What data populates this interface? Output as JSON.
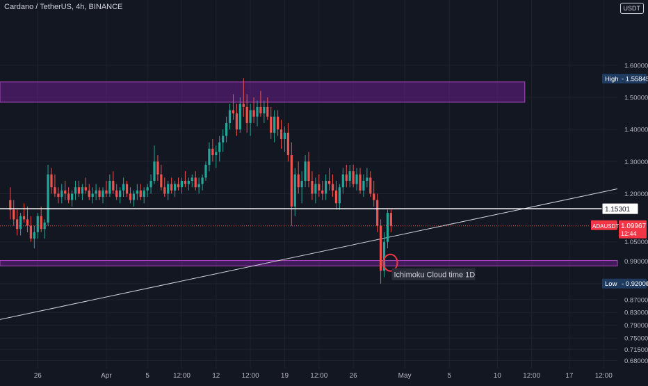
{
  "header": {
    "title": "Cardano / TetherUS, 4h, BINANCE",
    "currency_button": "USDT"
  },
  "colors": {
    "background": "#131722",
    "grid": "#1e222d",
    "bull": "#26a69a",
    "bear": "#ef5350",
    "zone_fill": "#7b1fa2",
    "zone_border": "#ab47bc",
    "hline": "#ffffff",
    "trendline": "#d1d4dc",
    "axis_text": "#b2b5be",
    "price_label_bg": "#f23645",
    "high_low_bg": "#1e3a5f",
    "annotation_circle": "#f23645"
  },
  "chart_data": {
    "type": "candlestick",
    "symbol": "ADAUSDT",
    "timeframe": "4h",
    "exchange": "BINANCE",
    "ylim": [
      0.655,
      1.76
    ],
    "y_axis": {
      "side": "right",
      "tick_labels": [
        "1.60000",
        "1.50000",
        "1.40000",
        "1.30000",
        "1.20000",
        "1.05000",
        "0.99000",
        "0.92000",
        "0.87000",
        "0.83000",
        "0.79000",
        "0.75000",
        "0.71500",
        "0.68000"
      ],
      "tick_values": [
        1.6,
        1.5,
        1.4,
        1.3,
        1.2,
        1.05,
        0.99,
        0.92,
        0.87,
        0.83,
        0.79,
        0.75,
        0.715,
        0.68
      ]
    },
    "x_axis": {
      "tick_labels": [
        "26",
        "Apr",
        "5",
        "12:00",
        "12",
        "12:00",
        "19",
        "12:00",
        "26",
        "May",
        "5",
        "10",
        "12:00",
        "17",
        "12:00"
      ],
      "tick_index": [
        8,
        28,
        40,
        50,
        60,
        70,
        80,
        90,
        100,
        115,
        128,
        142,
        152,
        163,
        173
      ]
    },
    "x_index_range": [
      -3,
      177
    ],
    "ohlc": [
      [
        1.18,
        1.22,
        1.12,
        1.15
      ],
      [
        1.15,
        1.18,
        1.1,
        1.12
      ],
      [
        1.12,
        1.15,
        1.07,
        1.09
      ],
      [
        1.09,
        1.14,
        1.07,
        1.13
      ],
      [
        1.13,
        1.17,
        1.11,
        1.12
      ],
      [
        1.12,
        1.16,
        1.08,
        1.1
      ],
      [
        1.1,
        1.13,
        1.05,
        1.06
      ],
      [
        1.06,
        1.1,
        1.03,
        1.08
      ],
      [
        1.08,
        1.14,
        1.06,
        1.13
      ],
      [
        1.13,
        1.16,
        1.08,
        1.09
      ],
      [
        1.09,
        1.12,
        1.06,
        1.11
      ],
      [
        1.11,
        1.29,
        1.1,
        1.26
      ],
      [
        1.26,
        1.28,
        1.2,
        1.22
      ],
      [
        1.22,
        1.26,
        1.19,
        1.2
      ],
      [
        1.2,
        1.22,
        1.17,
        1.19
      ],
      [
        1.19,
        1.23,
        1.17,
        1.21
      ],
      [
        1.21,
        1.24,
        1.18,
        1.2
      ],
      [
        1.2,
        1.22,
        1.17,
        1.18
      ],
      [
        1.18,
        1.21,
        1.16,
        1.2
      ],
      [
        1.2,
        1.24,
        1.18,
        1.22
      ],
      [
        1.22,
        1.24,
        1.19,
        1.2
      ],
      [
        1.2,
        1.23,
        1.18,
        1.22
      ],
      [
        1.22,
        1.25,
        1.2,
        1.21
      ],
      [
        1.21,
        1.23,
        1.18,
        1.19
      ],
      [
        1.19,
        1.22,
        1.17,
        1.2
      ],
      [
        1.2,
        1.23,
        1.18,
        1.21
      ],
      [
        1.21,
        1.22,
        1.18,
        1.19
      ],
      [
        1.19,
        1.22,
        1.17,
        1.21
      ],
      [
        1.21,
        1.24,
        1.19,
        1.2
      ],
      [
        1.2,
        1.26,
        1.19,
        1.24
      ],
      [
        1.24,
        1.27,
        1.2,
        1.21
      ],
      [
        1.21,
        1.23,
        1.18,
        1.19
      ],
      [
        1.19,
        1.22,
        1.17,
        1.21
      ],
      [
        1.21,
        1.25,
        1.19,
        1.23
      ],
      [
        1.23,
        1.24,
        1.19,
        1.2
      ],
      [
        1.2,
        1.22,
        1.17,
        1.18
      ],
      [
        1.18,
        1.21,
        1.16,
        1.2
      ],
      [
        1.2,
        1.23,
        1.18,
        1.21
      ],
      [
        1.21,
        1.23,
        1.18,
        1.19
      ],
      [
        1.19,
        1.22,
        1.17,
        1.21
      ],
      [
        1.21,
        1.23,
        1.19,
        1.22
      ],
      [
        1.22,
        1.26,
        1.2,
        1.24
      ],
      [
        1.24,
        1.35,
        1.23,
        1.3
      ],
      [
        1.3,
        1.32,
        1.24,
        1.26
      ],
      [
        1.26,
        1.29,
        1.21,
        1.22
      ],
      [
        1.22,
        1.25,
        1.19,
        1.2
      ],
      [
        1.2,
        1.24,
        1.18,
        1.23
      ],
      [
        1.23,
        1.25,
        1.2,
        1.21
      ],
      [
        1.21,
        1.24,
        1.19,
        1.23
      ],
      [
        1.23,
        1.25,
        1.21,
        1.22
      ],
      [
        1.22,
        1.25,
        1.2,
        1.24
      ],
      [
        1.24,
        1.27,
        1.22,
        1.23
      ],
      [
        1.23,
        1.25,
        1.21,
        1.24
      ],
      [
        1.24,
        1.26,
        1.22,
        1.25
      ],
      [
        1.25,
        1.27,
        1.21,
        1.22
      ],
      [
        1.22,
        1.25,
        1.2,
        1.23
      ],
      [
        1.23,
        1.26,
        1.21,
        1.25
      ],
      [
        1.25,
        1.3,
        1.24,
        1.29
      ],
      [
        1.29,
        1.36,
        1.27,
        1.34
      ],
      [
        1.34,
        1.37,
        1.3,
        1.32
      ],
      [
        1.32,
        1.35,
        1.28,
        1.33
      ],
      [
        1.33,
        1.38,
        1.3,
        1.36
      ],
      [
        1.36,
        1.4,
        1.33,
        1.38
      ],
      [
        1.38,
        1.44,
        1.36,
        1.42
      ],
      [
        1.42,
        1.48,
        1.4,
        1.46
      ],
      [
        1.46,
        1.51,
        1.43,
        1.45
      ],
      [
        1.45,
        1.48,
        1.38,
        1.4
      ],
      [
        1.4,
        1.5,
        1.39,
        1.48
      ],
      [
        1.48,
        1.56,
        1.44,
        1.47
      ],
      [
        1.47,
        1.51,
        1.39,
        1.42
      ],
      [
        1.42,
        1.48,
        1.38,
        1.46
      ],
      [
        1.46,
        1.5,
        1.42,
        1.44
      ],
      [
        1.44,
        1.49,
        1.41,
        1.47
      ],
      [
        1.47,
        1.52,
        1.44,
        1.45
      ],
      [
        1.45,
        1.49,
        1.42,
        1.47
      ],
      [
        1.47,
        1.5,
        1.43,
        1.44
      ],
      [
        1.44,
        1.47,
        1.37,
        1.39
      ],
      [
        1.39,
        1.46,
        1.36,
        1.44
      ],
      [
        1.44,
        1.46,
        1.38,
        1.4
      ],
      [
        1.4,
        1.43,
        1.34,
        1.37
      ],
      [
        1.37,
        1.41,
        1.33,
        1.39
      ],
      [
        1.39,
        1.42,
        1.3,
        1.32
      ],
      [
        1.32,
        1.36,
        1.1,
        1.16
      ],
      [
        1.16,
        1.28,
        1.13,
        1.26
      ],
      [
        1.26,
        1.3,
        1.2,
        1.22
      ],
      [
        1.22,
        1.27,
        1.17,
        1.24
      ],
      [
        1.24,
        1.32,
        1.22,
        1.3
      ],
      [
        1.3,
        1.33,
        1.22,
        1.24
      ],
      [
        1.24,
        1.27,
        1.18,
        1.2
      ],
      [
        1.2,
        1.25,
        1.17,
        1.23
      ],
      [
        1.23,
        1.26,
        1.19,
        1.21
      ],
      [
        1.21,
        1.24,
        1.18,
        1.2
      ],
      [
        1.2,
        1.26,
        1.18,
        1.24
      ],
      [
        1.24,
        1.28,
        1.21,
        1.23
      ],
      [
        1.23,
        1.26,
        1.19,
        1.21
      ],
      [
        1.21,
        1.24,
        1.15,
        1.17
      ],
      [
        1.17,
        1.23,
        1.15,
        1.22
      ],
      [
        1.22,
        1.28,
        1.2,
        1.26
      ],
      [
        1.26,
        1.29,
        1.22,
        1.24
      ],
      [
        1.24,
        1.29,
        1.22,
        1.27
      ],
      [
        1.27,
        1.29,
        1.22,
        1.23
      ],
      [
        1.23,
        1.28,
        1.21,
        1.26
      ],
      [
        1.26,
        1.28,
        1.2,
        1.21
      ],
      [
        1.21,
        1.26,
        1.19,
        1.24
      ],
      [
        1.24,
        1.28,
        1.22,
        1.25
      ],
      [
        1.25,
        1.27,
        1.19,
        1.2
      ],
      [
        1.2,
        1.24,
        1.16,
        1.18
      ],
      [
        1.18,
        1.2,
        1.08,
        1.1
      ],
      [
        1.1,
        1.12,
        0.92,
        0.96
      ],
      [
        0.96,
        1.08,
        0.94,
        1.05
      ],
      [
        1.05,
        1.15,
        1.03,
        1.14
      ],
      [
        1.14,
        1.15,
        1.08,
        1.1
      ]
    ],
    "horizontal_lines": [
      {
        "price": 1.15301,
        "label": "1.15301"
      }
    ],
    "zones": [
      {
        "from": 1.485,
        "to": 1.548,
        "x_start": -3,
        "x_end": 150
      },
      {
        "from": 0.975,
        "to": 0.992,
        "x_start": -3,
        "x_end": 177
      }
    ],
    "trendline": {
      "from": [
        -3,
        0.808
      ],
      "to": [
        177,
        1.215
      ]
    },
    "current_price": {
      "symbol": "ADAUSDT",
      "price": "1.09967",
      "countdown": "12:44"
    },
    "high": {
      "label": "High",
      "value": "1.55845"
    },
    "low": {
      "label": "Low",
      "value": "0.92000"
    },
    "annotation": {
      "text": "Ichimoku Cloud time 1D",
      "x_index": 110,
      "price": 0.985
    }
  }
}
